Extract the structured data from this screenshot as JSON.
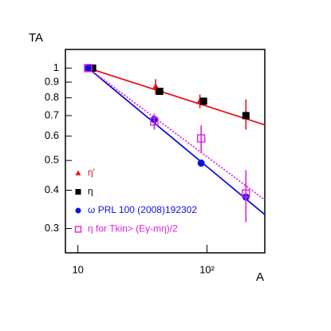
{
  "chart_data": {
    "type": "scatter",
    "xlabel": "A",
    "ylabel": "TA",
    "xscale": "log",
    "yscale": "log",
    "xlim": [
      8,
      280
    ],
    "ylim": [
      0.25,
      1.15
    ],
    "xticks": [
      10,
      {
        "value": 100,
        "label": "10²"
      }
    ],
    "yticks": [
      0.3,
      0.4,
      0.5,
      0.6,
      0.7,
      0.8,
      0.9,
      1
    ],
    "legend": "lower left",
    "series": [
      {
        "name": "η'",
        "color": "#e8101a",
        "marker": "triangle",
        "x": [
          12,
          40,
          88,
          200
        ],
        "values": [
          1.0,
          0.87,
          0.78,
          0.71
        ],
        "yerr": [
          0,
          0.05,
          0.04,
          0.08
        ]
      },
      {
        "name": "η",
        "color": "#000000",
        "marker": "square",
        "x": [
          13,
          43,
          94,
          200
        ],
        "values": [
          1.0,
          0.84,
          0.78,
          0.7
        ],
        "yerr": [
          0,
          0,
          0,
          0
        ]
      },
      {
        "name": "ω PRL 100 (2008)192302",
        "color": "#1010e0",
        "marker": "circle",
        "x": [
          12,
          39,
          90,
          200
        ],
        "values": [
          1.0,
          0.68,
          0.49,
          0.38
        ],
        "yerr": [
          0,
          0,
          0,
          0
        ]
      },
      {
        "name": "η for Tkin> (Eγ-mη)/2",
        "color": "#e020e0",
        "marker": "open-square",
        "x": [
          12,
          39,
          90,
          200
        ],
        "values": [
          1.0,
          0.67,
          0.59,
          0.39
        ],
        "yerr": [
          0,
          0.04,
          0.06,
          0.075
        ]
      }
    ],
    "fits": [
      {
        "color": "#e8101a",
        "dash": false,
        "x": [
          12,
          280
        ],
        "values": [
          1.0,
          0.653
        ]
      },
      {
        "color": "#1010e0",
        "dash": false,
        "x": [
          12,
          280
        ],
        "values": [
          1.0,
          0.333
        ]
      },
      {
        "color": "#e020e0",
        "dash": true,
        "x": [
          12,
          280
        ],
        "values": [
          1.0,
          0.372
        ]
      }
    ]
  }
}
